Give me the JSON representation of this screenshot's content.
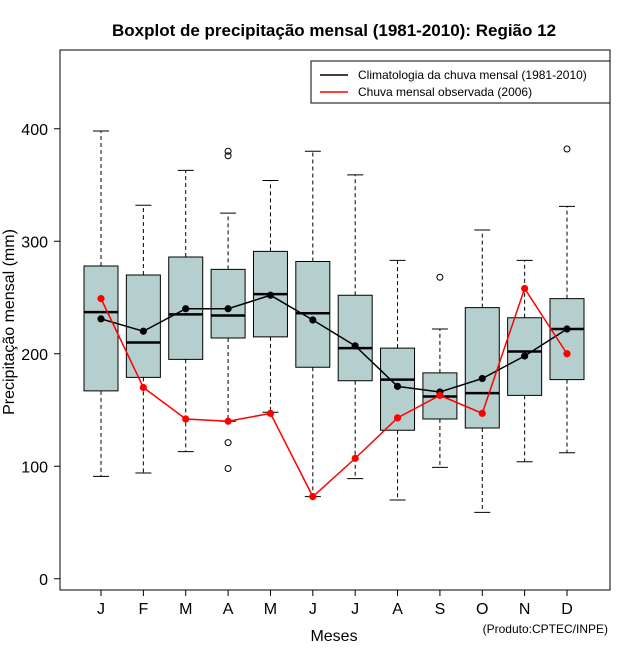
{
  "chart_data": {
    "type": "boxplot",
    "title": "Boxplot de precipitação mensal (1981-2010): Região 12",
    "xlabel": "Meses",
    "ylabel": "Precipitação mensal (mm)",
    "ylim": [
      -10,
      470
    ],
    "yticks": [
      0,
      100,
      200,
      300,
      400
    ],
    "categories": [
      "J",
      "F",
      "M",
      "A",
      "M",
      "J",
      "J",
      "A",
      "S",
      "O",
      "N",
      "D"
    ],
    "boxes": [
      {
        "q1": 167,
        "median": 237,
        "q3": 278,
        "whisker_low": 91,
        "whisker_high": 398,
        "outliers": []
      },
      {
        "q1": 179,
        "median": 210,
        "q3": 270,
        "whisker_low": 94,
        "whisker_high": 332,
        "outliers": []
      },
      {
        "q1": 195,
        "median": 235,
        "q3": 286,
        "whisker_low": 113,
        "whisker_high": 363,
        "outliers": []
      },
      {
        "q1": 214,
        "median": 234,
        "q3": 275,
        "whisker_low": 140,
        "whisker_high": 325,
        "outliers": [
          98,
          121,
          376,
          380
        ]
      },
      {
        "q1": 215,
        "median": 253,
        "q3": 291,
        "whisker_low": 148,
        "whisker_high": 354,
        "outliers": []
      },
      {
        "q1": 188,
        "median": 236,
        "q3": 282,
        "whisker_low": 73,
        "whisker_high": 380,
        "outliers": []
      },
      {
        "q1": 176,
        "median": 205,
        "q3": 252,
        "whisker_low": 89,
        "whisker_high": 359,
        "outliers": []
      },
      {
        "q1": 132,
        "median": 177,
        "q3": 205,
        "whisker_low": 70,
        "whisker_high": 283,
        "outliers": []
      },
      {
        "q1": 142,
        "median": 162,
        "q3": 183,
        "whisker_low": 99,
        "whisker_high": 222,
        "outliers": [
          268
        ]
      },
      {
        "q1": 134,
        "median": 165,
        "q3": 241,
        "whisker_low": 59,
        "whisker_high": 310,
        "outliers": []
      },
      {
        "q1": 163,
        "median": 202,
        "q3": 232,
        "whisker_low": 104,
        "whisker_high": 283,
        "outliers": []
      },
      {
        "q1": 177,
        "median": 222,
        "q3": 249,
        "whisker_low": 112,
        "whisker_high": 331,
        "outliers": [
          382
        ]
      }
    ],
    "series": [
      {
        "name": "Climatologia da chuva mensal (1981-2010)",
        "color": "#000000",
        "values": [
          231,
          220,
          240,
          240,
          252,
          230,
          207,
          171,
          166,
          178,
          198,
          222
        ]
      },
      {
        "name": "Chuva mensal observada (2006)",
        "color": "#ff0000",
        "values": [
          249,
          170,
          142,
          140,
          147,
          73,
          107,
          143,
          163,
          147,
          258,
          200
        ]
      }
    ],
    "legend_position": "top-right",
    "box_fill": "#b5cfcf"
  },
  "credit": "(Produto:CPTEC/INPE)"
}
